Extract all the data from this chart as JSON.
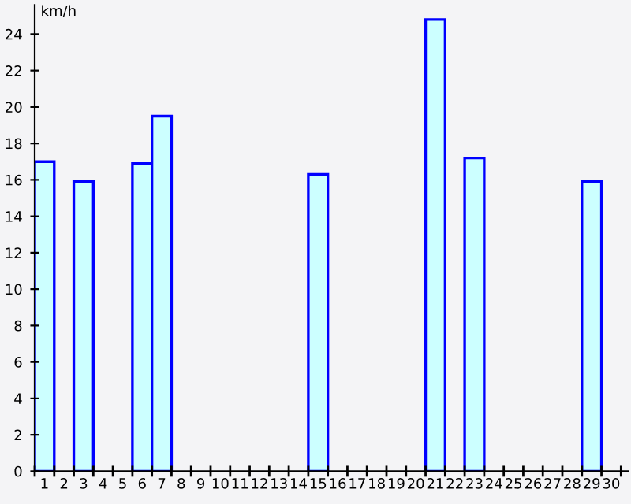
{
  "chart_data": {
    "type": "bar",
    "ylabel": "km/h",
    "categories": [
      "1",
      "2",
      "3",
      "4",
      "5",
      "6",
      "7",
      "8",
      "9",
      "10",
      "11",
      "12",
      "13",
      "14",
      "15",
      "16",
      "17",
      "18",
      "19",
      "20",
      "21",
      "22",
      "23",
      "24",
      "25",
      "26",
      "27",
      "28",
      "29",
      "30"
    ],
    "values": [
      17.0,
      null,
      15.9,
      null,
      null,
      16.9,
      19.5,
      null,
      null,
      null,
      null,
      null,
      null,
      null,
      16.3,
      null,
      null,
      null,
      null,
      null,
      24.8,
      null,
      17.2,
      null,
      null,
      null,
      null,
      null,
      15.9,
      null
    ],
    "color": "#ccffff",
    "ylim": [
      0,
      25.6
    ],
    "yticks": [
      0,
      2,
      4,
      6,
      8,
      10,
      12,
      14,
      16,
      18,
      20,
      22,
      24
    ],
    "grid": false
  }
}
